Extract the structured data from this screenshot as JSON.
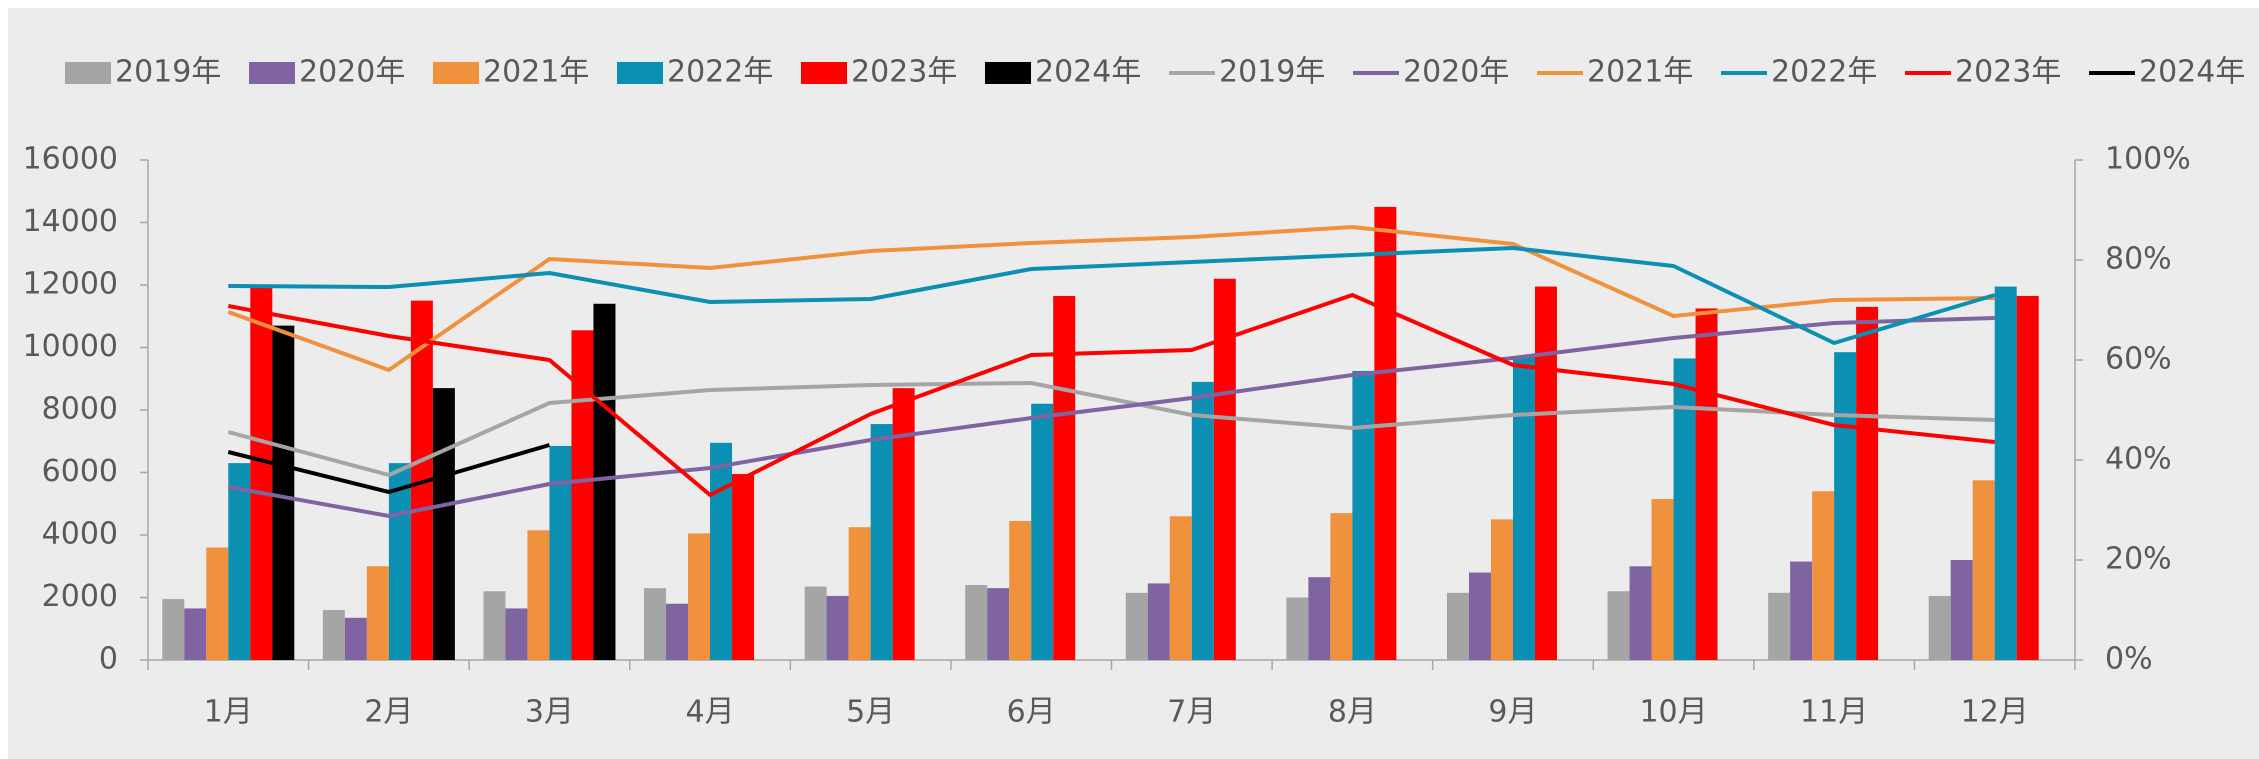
{
  "chart_data": {
    "type": "bar",
    "categories": [
      "1月",
      "2月",
      "3月",
      "4月",
      "5月",
      "6月",
      "7月",
      "8月",
      "9月",
      "10月",
      "11月",
      "12月"
    ],
    "ylim": [
      0,
      16000
    ],
    "yticks": [
      0,
      2000,
      4000,
      6000,
      8000,
      10000,
      12000,
      14000,
      16000
    ],
    "y2lim": [
      0,
      100
    ],
    "y2ticks": [
      {
        "value": 0,
        "label": "0%"
      },
      {
        "value": 20,
        "label": "20%"
      },
      {
        "value": 40,
        "label": "40%"
      },
      {
        "value": 60,
        "label": "60%"
      },
      {
        "value": 80,
        "label": "80%"
      },
      {
        "value": 100,
        "label": "100%"
      }
    ],
    "legend": "top",
    "series": [
      {
        "name": "2019年",
        "type": "bar",
        "color": "#a5a5a5",
        "values": [
          1950,
          1600,
          2200,
          2300,
          2350,
          2400,
          2150,
          2000,
          2150,
          2200,
          2150,
          2050
        ]
      },
      {
        "name": "2020年",
        "type": "bar",
        "color": "#8064a2",
        "values": [
          1650,
          1350,
          1650,
          1800,
          2050,
          2300,
          2450,
          2650,
          2800,
          3000,
          3150,
          3200
        ]
      },
      {
        "name": "2021年",
        "type": "bar",
        "color": "#f0913d",
        "values": [
          3600,
          3000,
          4150,
          4050,
          4250,
          4450,
          4600,
          4700,
          4500,
          5150,
          5400,
          5750
        ]
      },
      {
        "name": "2022年",
        "type": "bar",
        "color": "#0b8fb3",
        "values": [
          6300,
          6300,
          6850,
          6950,
          7550,
          8200,
          8900,
          9250,
          9700,
          9650,
          9850,
          11950
        ]
      },
      {
        "name": "2023年",
        "type": "bar",
        "color": "#ff0000",
        "values": [
          11950,
          11500,
          10550,
          5950,
          8700,
          11650,
          12200,
          14500,
          11950,
          11250,
          11300,
          11650
        ]
      },
      {
        "name": "2024年",
        "type": "bar",
        "color": "#000000",
        "values": [
          10700,
          8700,
          11400,
          null,
          null,
          null,
          null,
          null,
          null,
          null,
          null,
          null
        ]
      },
      {
        "name": "2019年",
        "type": "line",
        "axis": "y2",
        "color": "#a5a5a5",
        "values": [
          45.6,
          37,
          51.4,
          54,
          55,
          55.4,
          49,
          46.4,
          49,
          50.6,
          49,
          48
        ]
      },
      {
        "name": "2020年",
        "type": "line",
        "axis": "y2",
        "color": "#8064a2",
        "values": [
          34.6,
          28.8,
          35.2,
          38.4,
          44,
          48.4,
          52.4,
          57,
          60.4,
          64.4,
          67.4,
          68.4
        ]
      },
      {
        "name": "2021年",
        "type": "line",
        "axis": "y2",
        "color": "#f0913d",
        "values": [
          69.6,
          58,
          80.2,
          78.4,
          81.8,
          83.4,
          84.6,
          86.6,
          83.2,
          68.8,
          72,
          72.4
        ]
      },
      {
        "name": "2022年",
        "type": "line",
        "axis": "y2",
        "color": "#0b8fb3",
        "values": [
          74.8,
          74.6,
          77.4,
          71.6,
          72.2,
          78.2,
          79.6,
          81,
          82.4,
          78.8,
          63.4,
          73
        ]
      },
      {
        "name": "2023年",
        "type": "line",
        "axis": "y2",
        "color": "#ff0000",
        "values": [
          70.8,
          64.8,
          60,
          33,
          49.2,
          61,
          62,
          73,
          59,
          55.2,
          47,
          43.6
        ]
      },
      {
        "name": "2024年",
        "type": "line",
        "axis": "y2",
        "color": "#000000",
        "values": [
          41.6,
          33.6,
          43,
          null,
          null,
          null,
          null,
          null,
          null,
          null,
          null,
          null
        ]
      }
    ]
  }
}
